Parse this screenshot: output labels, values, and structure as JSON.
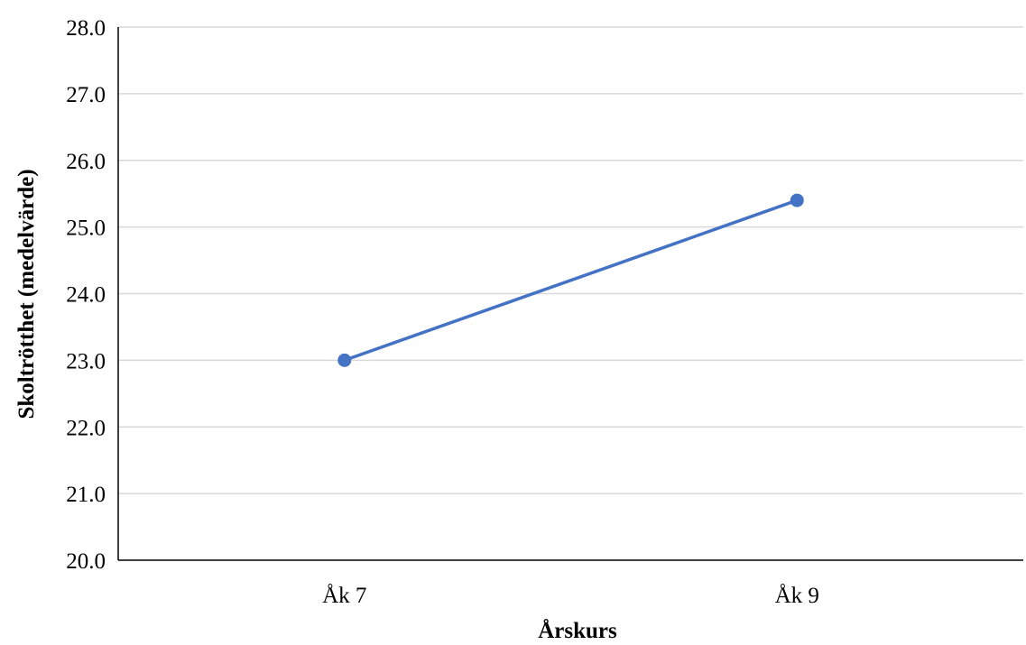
{
  "chart_data": {
    "type": "line",
    "categories": [
      "Åk 7",
      "Åk 9"
    ],
    "series": [
      {
        "values": [
          23.0,
          25.4
        ],
        "color": "#4472C4"
      }
    ],
    "title": "",
    "xlabel": "Årskurs",
    "ylabel": "Skoltrötthet (medelvärde)",
    "ylim": [
      20.0,
      28.0
    ],
    "yticks": [
      "20.0",
      "21.0",
      "22.0",
      "23.0",
      "24.0",
      "25.0",
      "26.0",
      "27.0",
      "28.0"
    ],
    "grid": true,
    "legend": "none",
    "gridline_color": "#D9D9D9",
    "axis_color": "#000000"
  }
}
